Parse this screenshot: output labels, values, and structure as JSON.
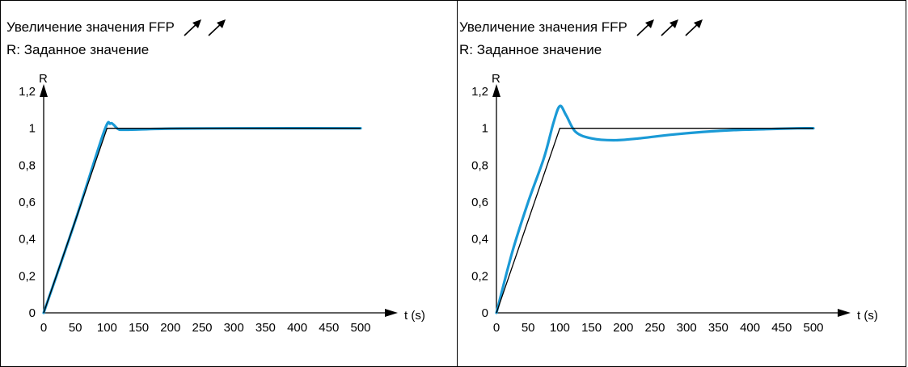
{
  "chart_data": [
    {
      "type": "line",
      "title": "Увеличение значения FFP",
      "title_arrows": 2,
      "subtitle": "R: Заданное значение",
      "ylabel": "R",
      "xlabel": "t (s)",
      "xlim": [
        0,
        500
      ],
      "ylim": [
        0,
        1.2
      ],
      "x_ticks": [
        "0",
        "50",
        "100",
        "150",
        "200",
        "250",
        "300",
        "350",
        "400",
        "450",
        "500"
      ],
      "y_ticks": [
        "0",
        "0,2",
        "0,4",
        "0,6",
        "0,8",
        "1",
        "1,2"
      ],
      "grid": false,
      "colors": {
        "setpoint": "#000000",
        "response": "#1a9ad6"
      },
      "series": [
        {
          "x": [
            0,
            100,
            500
          ],
          "values": [
            0,
            1,
            1
          ]
        },
        {
          "x": [
            0,
            50,
            95,
            105,
            110,
            118,
            130,
            200,
            300,
            500
          ],
          "values": [
            0,
            0.5,
            0.98,
            1.025,
            1.02,
            0.995,
            0.992,
            0.998,
            1.0,
            1.0
          ]
        }
      ]
    },
    {
      "type": "line",
      "title": "Увеличение значения FFP",
      "title_arrows": 3,
      "subtitle": "R: Заданное значение",
      "ylabel": "R",
      "xlabel": "t (s)",
      "xlim": [
        0,
        500
      ],
      "ylim": [
        0,
        1.2
      ],
      "x_ticks": [
        "0",
        "50",
        "100",
        "150",
        "200",
        "250",
        "300",
        "350",
        "400",
        "450",
        "500"
      ],
      "y_ticks": [
        "0",
        "0,2",
        "0,4",
        "0,6",
        "0,8",
        "1",
        "1,2"
      ],
      "grid": false,
      "colors": {
        "setpoint": "#000000",
        "response": "#1a9ad6"
      },
      "series": [
        {
          "x": [
            0,
            100,
            500
          ],
          "values": [
            0,
            1,
            1
          ]
        },
        {
          "x": [
            0,
            25,
            50,
            75,
            90,
            100,
            110,
            125,
            150,
            185,
            225,
            275,
            325,
            375,
            425,
            475,
            500
          ],
          "values": [
            0,
            0.33,
            0.6,
            0.84,
            1.03,
            1.12,
            1.07,
            0.98,
            0.945,
            0.935,
            0.945,
            0.965,
            0.98,
            0.99,
            0.995,
            1.0,
            1.0
          ]
        }
      ]
    }
  ]
}
